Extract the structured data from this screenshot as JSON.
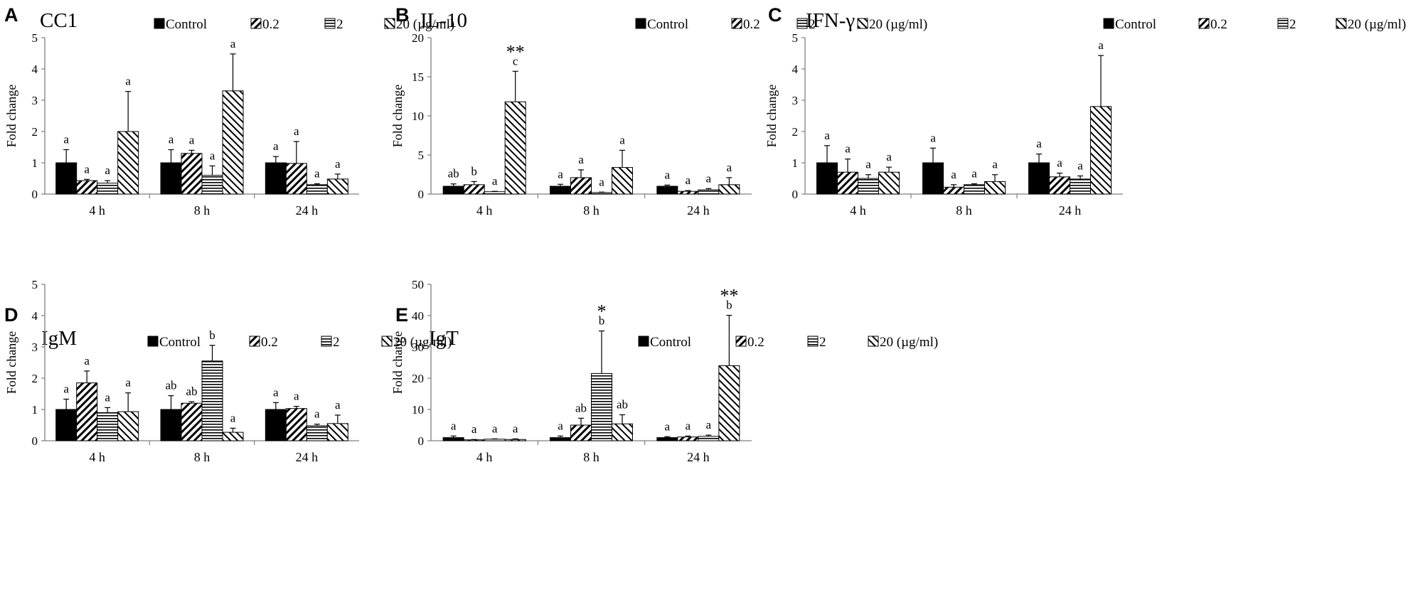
{
  "figure": {
    "legend": {
      "labels": [
        "Control",
        "0.2",
        "2",
        "20 (µg/ml)"
      ],
      "patterns": [
        "solid",
        "diag-right",
        "horizontal",
        "diag-left"
      ]
    },
    "categories": [
      "4 h",
      "8 h",
      "24 h"
    ],
    "ylabel": "Fold change"
  },
  "chart_data": [
    {
      "panel": "A",
      "title": "CC1",
      "type": "bar",
      "categories": [
        "4 h",
        "8 h",
        "24 h"
      ],
      "ylabel": "Fold change",
      "ylim": [
        0,
        5
      ],
      "yticks": [
        "0",
        "1",
        "2",
        "3",
        "4",
        "5"
      ],
      "series": [
        {
          "name": "Control",
          "values": [
            1.0,
            1.0,
            1.0
          ],
          "errors": [
            0.42,
            0.42,
            0.2
          ],
          "letters": [
            "a",
            "a",
            "a"
          ],
          "stars": [
            "",
            "",
            ""
          ]
        },
        {
          "name": "0.2",
          "values": [
            0.43,
            1.3,
            0.98
          ],
          "errors": [
            0.04,
            0.1,
            0.7
          ],
          "letters": [
            "a",
            "a",
            "a"
          ],
          "stars": [
            "",
            "",
            ""
          ]
        },
        {
          "name": "2",
          "values": [
            0.35,
            0.6,
            0.3
          ],
          "errors": [
            0.08,
            0.3,
            0.03
          ],
          "letters": [
            "a",
            "a",
            "a"
          ],
          "stars": [
            "",
            "",
            ""
          ]
        },
        {
          "name": "20 (µg/ml)",
          "values": [
            2.0,
            3.3,
            0.48
          ],
          "errors": [
            1.28,
            1.18,
            0.16
          ],
          "letters": [
            "a",
            "a",
            "a"
          ],
          "stars": [
            "",
            "",
            ""
          ]
        }
      ]
    },
    {
      "panel": "B",
      "title": "IL-10",
      "type": "bar",
      "categories": [
        "4 h",
        "8 h",
        "24 h"
      ],
      "ylabel": "Fold change",
      "ylim": [
        0,
        20
      ],
      "yticks": [
        "0",
        "5",
        "10",
        "15",
        "20"
      ],
      "series": [
        {
          "name": "Control",
          "values": [
            1.0,
            1.0,
            1.0
          ],
          "errors": [
            0.3,
            0.25,
            0.15
          ],
          "letters": [
            "ab",
            "a",
            "a"
          ],
          "stars": [
            "",
            "",
            ""
          ]
        },
        {
          "name": "0.2",
          "values": [
            1.2,
            2.1,
            0.35
          ],
          "errors": [
            0.4,
            1.0,
            0.1
          ],
          "letters": [
            "b",
            "a",
            "a"
          ],
          "stars": [
            "",
            "",
            ""
          ]
        },
        {
          "name": "2",
          "values": [
            0.3,
            0.2,
            0.55
          ],
          "errors": [
            0.05,
            0.05,
            0.15
          ],
          "letters": [
            "a",
            "a",
            "a"
          ],
          "stars": [
            "",
            "",
            ""
          ]
        },
        {
          "name": "20 (µg/ml)",
          "values": [
            11.8,
            3.4,
            1.2
          ],
          "errors": [
            3.9,
            2.2,
            0.9
          ],
          "letters": [
            "c",
            "a",
            "a"
          ],
          "stars": [
            "**",
            "",
            ""
          ]
        }
      ]
    },
    {
      "panel": "C",
      "title": "IFN-γ",
      "type": "bar",
      "categories": [
        "4 h",
        "8 h",
        "24 h"
      ],
      "ylabel": "Fold change",
      "ylim": [
        0,
        5
      ],
      "yticks": [
        "0",
        "1",
        "2",
        "3",
        "4",
        "5"
      ],
      "series": [
        {
          "name": "Control",
          "values": [
            1.0,
            1.0,
            1.0
          ],
          "errors": [
            0.55,
            0.47,
            0.28
          ],
          "letters": [
            "a",
            "a",
            "a"
          ],
          "stars": [
            "",
            "",
            ""
          ]
        },
        {
          "name": "0.2",
          "values": [
            0.7,
            0.22,
            0.55
          ],
          "errors": [
            0.42,
            0.08,
            0.12
          ],
          "letters": [
            "a",
            "a",
            "a"
          ],
          "stars": [
            "",
            "",
            ""
          ]
        },
        {
          "name": "2",
          "values": [
            0.5,
            0.3,
            0.48
          ],
          "errors": [
            0.12,
            0.03,
            0.1
          ],
          "letters": [
            "a",
            "a",
            "a"
          ],
          "stars": [
            "",
            "",
            ""
          ]
        },
        {
          "name": "20 (µg/ml)",
          "values": [
            0.7,
            0.4,
            2.8
          ],
          "errors": [
            0.16,
            0.22,
            1.63
          ],
          "letters": [
            "a",
            "a",
            "a"
          ],
          "stars": [
            "",
            "",
            ""
          ]
        }
      ]
    },
    {
      "panel": "D",
      "title": "IgM",
      "type": "bar",
      "categories": [
        "4 h",
        "8 h",
        "24 h"
      ],
      "ylabel": "Fold change",
      "ylim": [
        0,
        5
      ],
      "yticks": [
        "0",
        "1",
        "2",
        "3",
        "4",
        "5"
      ],
      "series": [
        {
          "name": "Control",
          "values": [
            1.0,
            1.0,
            1.0
          ],
          "errors": [
            0.33,
            0.44,
            0.22
          ],
          "letters": [
            "a",
            "ab",
            "a"
          ],
          "stars": [
            "",
            "",
            ""
          ]
        },
        {
          "name": "0.2",
          "values": [
            1.85,
            1.2,
            1.03
          ],
          "errors": [
            0.38,
            0.05,
            0.07
          ],
          "letters": [
            "a",
            "ab",
            "a"
          ],
          "stars": [
            "",
            "",
            ""
          ]
        },
        {
          "name": "2",
          "values": [
            0.9,
            2.55,
            0.48
          ],
          "errors": [
            0.16,
            0.5,
            0.05
          ],
          "letters": [
            "a",
            "b",
            "a"
          ],
          "stars": [
            "",
            "",
            ""
          ]
        },
        {
          "name": "20 (µg/ml)",
          "values": [
            0.93,
            0.27,
            0.55
          ],
          "errors": [
            0.6,
            0.13,
            0.27
          ],
          "letters": [
            "a",
            "a",
            "a"
          ],
          "stars": [
            "",
            "",
            ""
          ]
        }
      ]
    },
    {
      "panel": "E",
      "title": "IgT",
      "type": "bar",
      "categories": [
        "4 h",
        "8 h",
        "24 h"
      ],
      "ylabel": "Fold change",
      "ylim": [
        0,
        50
      ],
      "yticks": [
        "0",
        "10",
        "20",
        "30",
        "40",
        "50"
      ],
      "series": [
        {
          "name": "Control",
          "values": [
            1.0,
            1.0,
            1.0
          ],
          "errors": [
            0.5,
            0.5,
            0.3
          ],
          "letters": [
            "a",
            "a",
            "a"
          ],
          "stars": [
            "",
            "",
            ""
          ]
        },
        {
          "name": "0.2",
          "values": [
            0.3,
            5.0,
            1.2
          ],
          "errors": [
            0.1,
            2.2,
            0.3
          ],
          "letters": [
            "a",
            "ab",
            "a"
          ],
          "stars": [
            "",
            "",
            ""
          ]
        },
        {
          "name": "2",
          "values": [
            0.5,
            21.5,
            1.4
          ],
          "errors": [
            0.1,
            13.6,
            0.4
          ],
          "letters": [
            "a",
            "b",
            "a"
          ],
          "stars": [
            "",
            "*",
            ""
          ]
        },
        {
          "name": "20 (µg/ml)",
          "values": [
            0.4,
            5.4,
            24.0
          ],
          "errors": [
            0.2,
            2.9,
            16.1
          ],
          "letters": [
            "a",
            "ab",
            "b"
          ],
          "stars": [
            "",
            "",
            "**"
          ]
        }
      ]
    }
  ]
}
